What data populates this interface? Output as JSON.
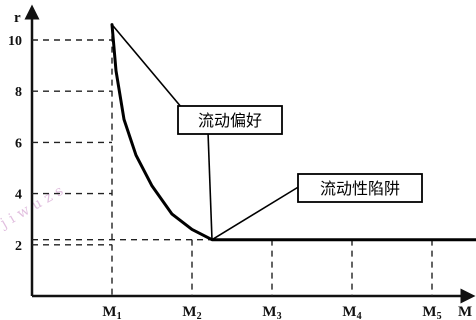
{
  "chart_data": {
    "type": "line",
    "y_axis_name": "r",
    "x_axis_name": "M",
    "y_ticks": [
      "2",
      "4",
      "6",
      "8",
      "10"
    ],
    "x_ticks": [
      {
        "base": "M",
        "sub": "1"
      },
      {
        "base": "M",
        "sub": "2"
      },
      {
        "base": "M",
        "sub": "3"
      },
      {
        "base": "M",
        "sub": "4"
      },
      {
        "base": "M",
        "sub": "5"
      }
    ],
    "ylim": [
      0,
      11.4
    ],
    "xlim": [
      0,
      5.9
    ],
    "series": [
      {
        "x": [
          1.0,
          1.05,
          1.15,
          1.3,
          1.5,
          1.75,
          2.0,
          2.25,
          3.0,
          4.0,
          5.0,
          5.9
        ],
        "y": [
          10.6,
          8.8,
          6.9,
          5.5,
          4.3,
          3.2,
          2.6,
          2.2,
          2.2,
          2.2,
          2.2,
          2.2
        ]
      }
    ],
    "annotations": [
      {
        "text": "流动偏好",
        "point": [
          2.25,
          2.2
        ]
      },
      {
        "text": "流动性陷阱",
        "point": [
          2.25,
          2.2
        ]
      }
    ],
    "watermark": "jiwuzs"
  }
}
